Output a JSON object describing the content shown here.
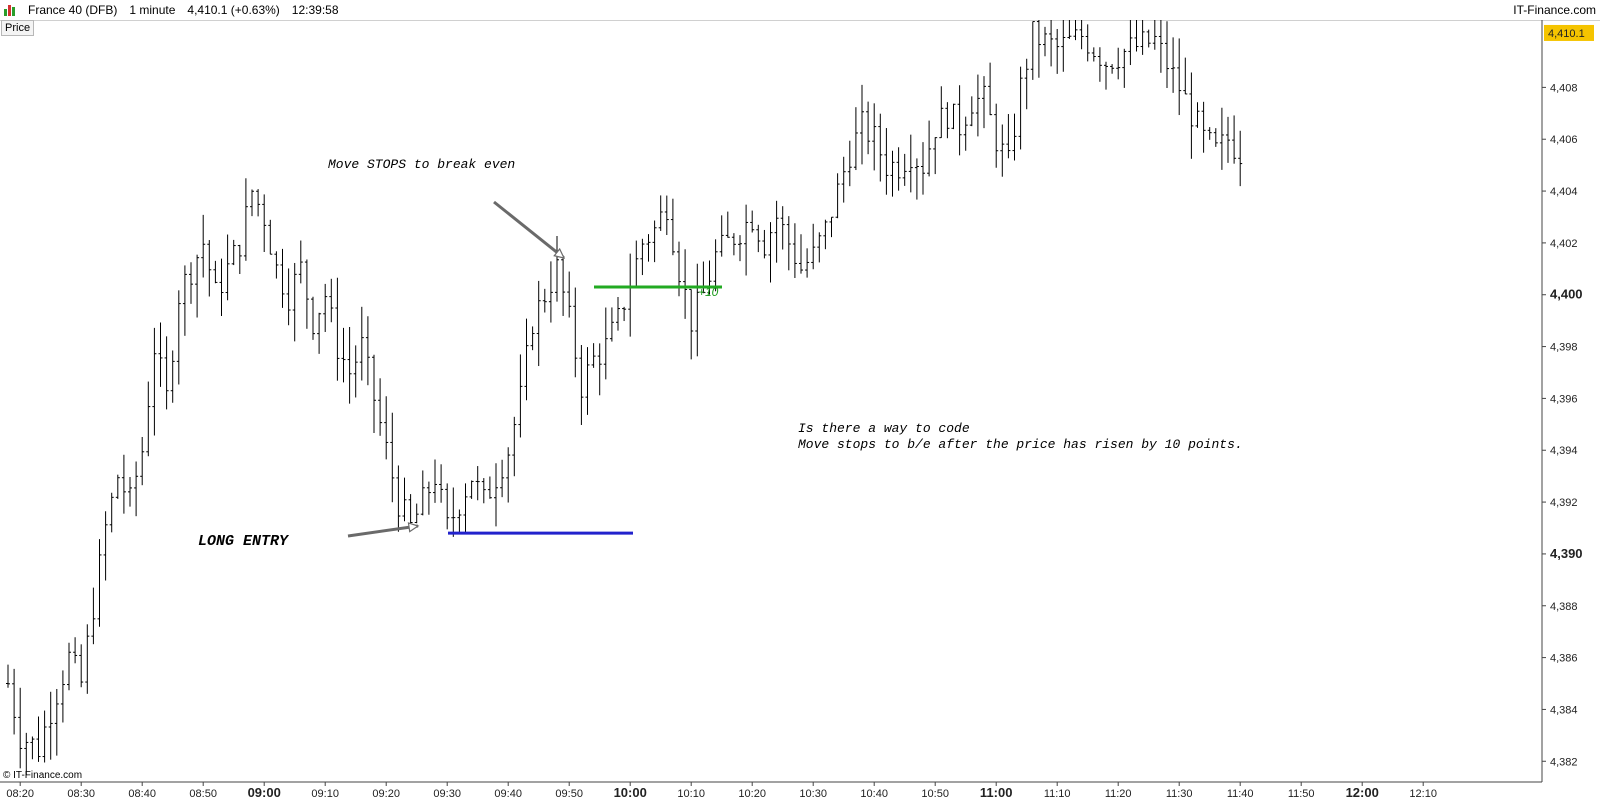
{
  "header": {
    "instrument": "France 40 (DFB)",
    "timeframe": "1 minute",
    "quote": "4,410.1 (+0.63%)",
    "time": "12:39:58",
    "brand": "IT-Finance.com",
    "price_tab": "Price"
  },
  "footer": {
    "copyright": "© IT-Finance.com"
  },
  "annotations": {
    "move_stops": "Move STOPS to break even",
    "long_entry": "LONG ENTRY",
    "question_line1": "Is there a way to code",
    "question_line2": "Move stops to b/e after the price has risen by 10 points.",
    "plus_ten": "+10"
  },
  "colors": {
    "bars": "#000000",
    "entry_line": "#2222cc",
    "breakeven_line": "#22aa22",
    "last_price_badge": "#f5c400",
    "arrow": "#6a6a6a"
  },
  "chart_data": {
    "type": "ohlc",
    "title": "France 40 (DFB)",
    "ylim": [
      4381.2,
      4410.6
    ],
    "y_ticks": [
      "4,382",
      "4,384",
      "4,386",
      "4,388",
      "4,390",
      "4,392",
      "4,394",
      "4,396",
      "4,398",
      "4,400",
      "4,402",
      "4,404",
      "4,406",
      "4,408",
      "4,410.1"
    ],
    "y_tick_values": [
      4382,
      4384,
      4386,
      4388,
      4390,
      4392,
      4394,
      4396,
      4398,
      4400,
      4402,
      4404,
      4406,
      4408,
      4410.1
    ],
    "y_bold_tick": "4,390",
    "y_bold_tick2": "4,400",
    "last_price": 4410.1,
    "last_price_label": "4,410.1",
    "x_ticks": [
      {
        "label": "08:20",
        "minute": 500,
        "major": false
      },
      {
        "label": "08:30",
        "minute": 510,
        "major": false
      },
      {
        "label": "08:40",
        "minute": 520,
        "major": false
      },
      {
        "label": "08:50",
        "minute": 530,
        "major": false
      },
      {
        "label": "09:00",
        "minute": 540,
        "major": true
      },
      {
        "label": "09:10",
        "minute": 550,
        "major": false
      },
      {
        "label": "09:20",
        "minute": 560,
        "major": false
      },
      {
        "label": "09:30",
        "minute": 570,
        "major": false
      },
      {
        "label": "09:40",
        "minute": 580,
        "major": false
      },
      {
        "label": "09:50",
        "minute": 590,
        "major": false
      },
      {
        "label": "10:00",
        "minute": 600,
        "major": true
      },
      {
        "label": "10:10",
        "minute": 610,
        "major": false
      },
      {
        "label": "10:20",
        "minute": 620,
        "major": false
      },
      {
        "label": "10:30",
        "minute": 630,
        "major": false
      },
      {
        "label": "10:40",
        "minute": 640,
        "major": false
      },
      {
        "label": "10:50",
        "minute": 650,
        "major": false
      },
      {
        "label": "11:00",
        "minute": 660,
        "major": true
      },
      {
        "label": "11:10",
        "minute": 670,
        "major": false
      },
      {
        "label": "11:20",
        "minute": 680,
        "major": false
      },
      {
        "label": "11:30",
        "minute": 690,
        "major": false
      },
      {
        "label": "11:40",
        "minute": 700,
        "major": false
      },
      {
        "label": "11:50",
        "minute": 710,
        "major": false
      },
      {
        "label": "12:00",
        "minute": 720,
        "major": true
      },
      {
        "label": "12:10",
        "minute": 730,
        "major": false
      }
    ],
    "path_anchors": [
      [
        498,
        4385
      ],
      [
        500,
        4383
      ],
      [
        503,
        4382.5
      ],
      [
        505,
        4384
      ],
      [
        508,
        4386
      ],
      [
        510,
        4385
      ],
      [
        512,
        4388
      ],
      [
        514,
        4391
      ],
      [
        516,
        4393
      ],
      [
        518,
        4392
      ],
      [
        520,
        4394
      ],
      [
        522,
        4398
      ],
      [
        524,
        4396
      ],
      [
        526,
        4400
      ],
      [
        528,
        4401
      ],
      [
        530,
        4402
      ],
      [
        532,
        4400
      ],
      [
        534,
        4401
      ],
      [
        536,
        4402
      ],
      [
        538,
        4404
      ],
      [
        540,
        4403
      ],
      [
        542,
        4401
      ],
      [
        544,
        4400
      ],
      [
        546,
        4401
      ],
      [
        548,
        4399
      ],
      [
        550,
        4400
      ],
      [
        552,
        4398
      ],
      [
        554,
        4397
      ],
      [
        556,
        4398
      ],
      [
        558,
        4396
      ],
      [
        560,
        4394
      ],
      [
        562,
        4392
      ],
      [
        564,
        4391
      ],
      [
        566,
        4392
      ],
      [
        568,
        4393
      ],
      [
        570,
        4391
      ],
      [
        572,
        4392
      ],
      [
        574,
        4393
      ],
      [
        576,
        4392
      ],
      [
        578,
        4393
      ],
      [
        580,
        4394
      ],
      [
        582,
        4396
      ],
      [
        584,
        4399
      ],
      [
        586,
        4400
      ],
      [
        588,
        4401
      ],
      [
        590,
        4399
      ],
      [
        592,
        4396.5
      ],
      [
        594,
        4397.5
      ],
      [
        596,
        4398
      ],
      [
        598,
        4399
      ],
      [
        600,
        4400.5
      ],
      [
        602,
        4402
      ],
      [
        604,
        4402.5
      ],
      [
        606,
        4403.5
      ],
      [
        608,
        4401
      ],
      [
        610,
        4399
      ],
      [
        612,
        4400
      ],
      [
        614,
        4401.5
      ],
      [
        616,
        4402
      ],
      [
        618,
        4402.5
      ],
      [
        620,
        4403
      ],
      [
        622,
        4402
      ],
      [
        624,
        4403
      ],
      [
        626,
        4402
      ],
      [
        628,
        4401
      ],
      [
        630,
        4401.5
      ],
      [
        632,
        4402.5
      ],
      [
        634,
        4404
      ],
      [
        636,
        4405.5
      ],
      [
        638,
        4406.5
      ],
      [
        640,
        4406
      ],
      [
        642,
        4405
      ],
      [
        644,
        4405
      ],
      [
        646,
        4405.5
      ],
      [
        648,
        4405
      ],
      [
        650,
        4406.5
      ],
      [
        652,
        4407
      ],
      [
        654,
        4406.5
      ],
      [
        656,
        4407.5
      ],
      [
        658,
        4407.5
      ],
      [
        660,
        4406
      ],
      [
        662,
        4405
      ],
      [
        664,
        4408
      ],
      [
        666,
        4410
      ],
      [
        670,
        4409.5
      ],
      [
        674,
        4410
      ],
      [
        678,
        4409
      ],
      [
        682,
        4409.5
      ],
      [
        686,
        4409.8
      ],
      [
        690,
        4408
      ],
      [
        694,
        4406
      ],
      [
        696,
        4405.5
      ],
      [
        698,
        4406
      ],
      [
        700,
        4405.5
      ]
    ],
    "first_minute": 498,
    "last_minute": 700,
    "long_entry_price": 4390.8,
    "breakeven_price": 4400.3
  }
}
